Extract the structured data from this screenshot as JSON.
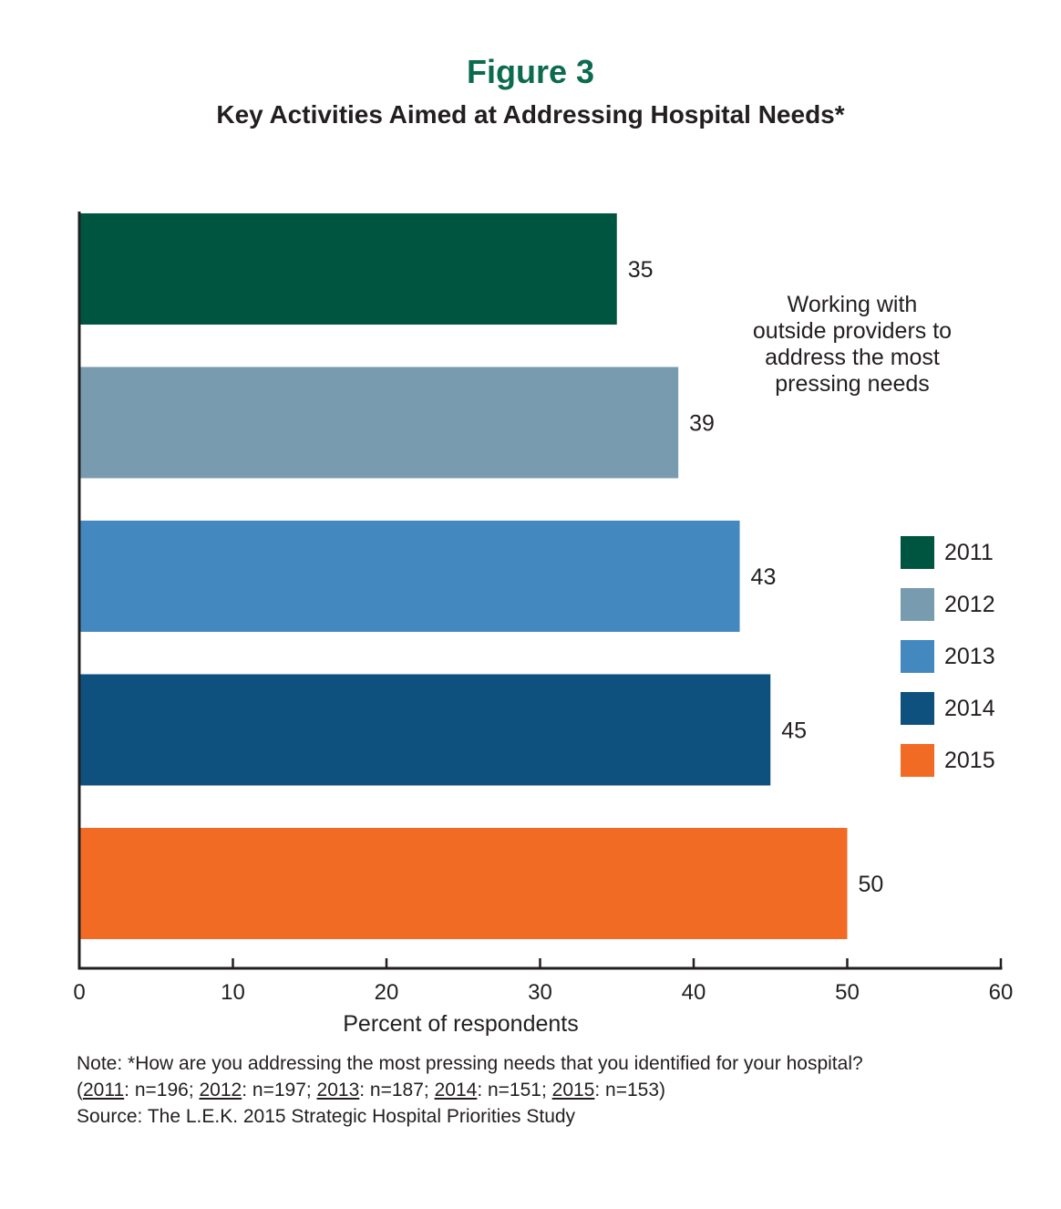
{
  "header": {
    "figure_label": "Figure 3",
    "title": "Key Activities Aimed at Addressing Hospital Needs*"
  },
  "chart_data": {
    "type": "bar",
    "orientation": "horizontal",
    "title": "Key Activities Aimed at Addressing Hospital Needs*",
    "xlabel": "Percent of respondents",
    "ylabel": "",
    "xlim": [
      0,
      60
    ],
    "xticks": [
      0,
      10,
      20,
      30,
      40,
      50,
      60
    ],
    "category": "Working with outside providers to address the most pressing needs",
    "series": [
      {
        "name": "2011",
        "values": [
          35
        ],
        "color": "#005541"
      },
      {
        "name": "2012",
        "values": [
          39
        ],
        "color": "#789bb0"
      },
      {
        "name": "2013",
        "values": [
          43
        ],
        "color": "#4488c0"
      },
      {
        "name": "2014",
        "values": [
          45
        ],
        "color": "#0f517e"
      },
      {
        "name": "2015",
        "values": [
          50
        ],
        "color": "#f26b24"
      }
    ],
    "legend": "right",
    "grid": false
  },
  "annotation": {
    "lines": [
      "Working with",
      "outside providers to",
      "address the most",
      "pressing needs"
    ]
  },
  "footnote": {
    "note_line": "Note: *How are you addressing the most pressing needs that you identified for your hospital?",
    "samples": [
      {
        "year": "2011",
        "n": ": n=196"
      },
      {
        "year": "2012",
        "n": ": n=197"
      },
      {
        "year": "2013",
        "n": ": n=187"
      },
      {
        "year": "2014",
        "n": ": n=151"
      },
      {
        "year": "2015",
        "n": ": n=153"
      }
    ],
    "source": "Source: The L.E.K. 2015 Strategic Hospital Priorities Study"
  }
}
